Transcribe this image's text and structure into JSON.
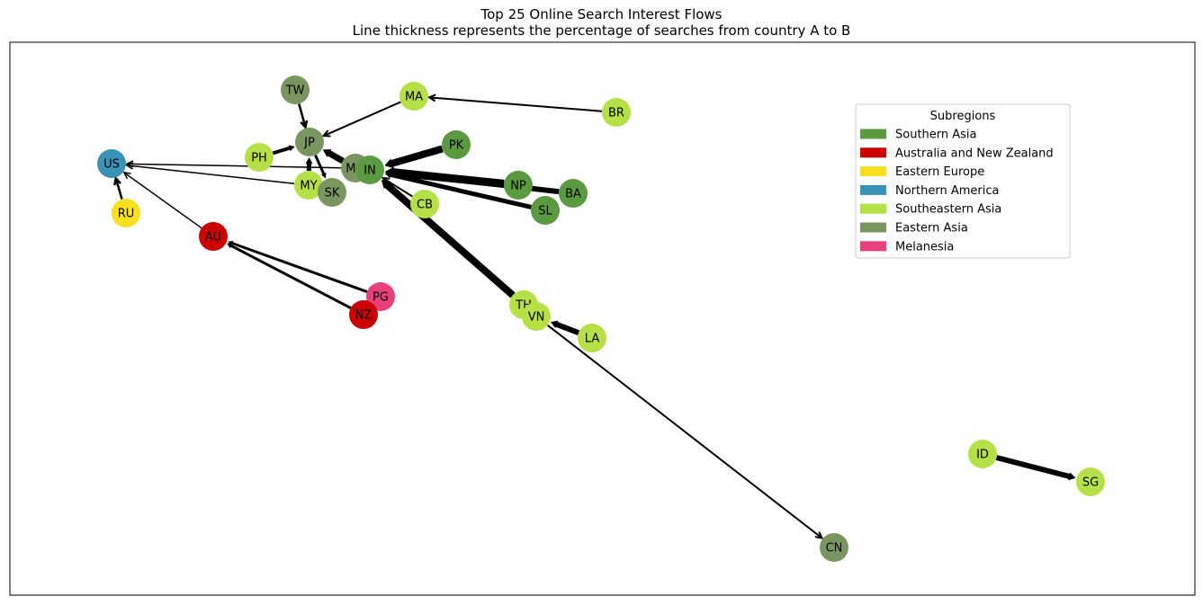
{
  "title": {
    "line1": "Top 25 Online Search Interest Flows",
    "line2": "Line thickness represents the percentage of searches from country A to B"
  },
  "legend": {
    "title": "Subregions",
    "items": [
      {
        "label": "Southern Asia",
        "color": "#5a9a40"
      },
      {
        "label": "Australia and New Zealand",
        "color": "#cc0000"
      },
      {
        "label": "Eastern Europe",
        "color": "#f8e020"
      },
      {
        "label": "Northern America",
        "color": "#3a93b5"
      },
      {
        "label": "Southeastern Asia",
        "color": "#b5e048"
      },
      {
        "label": "Eastern Asia",
        "color": "#7a9660"
      },
      {
        "label": "Melanesia",
        "color": "#e8407a"
      }
    ]
  },
  "nodes": [
    {
      "id": "TW",
      "subregion": "Eastern Asia"
    },
    {
      "id": "MA",
      "subregion": "Southeastern Asia"
    },
    {
      "id": "BR",
      "subregion": "Southeastern Asia"
    },
    {
      "id": "JP",
      "subregion": "Eastern Asia"
    },
    {
      "id": "PK",
      "subregion": "Southern Asia"
    },
    {
      "id": "PH",
      "subregion": "Southeastern Asia"
    },
    {
      "id": "US",
      "subregion": "Northern America"
    },
    {
      "id": "MO",
      "subregion": "Eastern Asia"
    },
    {
      "id": "IN",
      "subregion": "Southern Asia"
    },
    {
      "id": "NP",
      "subregion": "Southern Asia"
    },
    {
      "id": "BA",
      "subregion": "Southern Asia"
    },
    {
      "id": "MY",
      "subregion": "Southeastern Asia"
    },
    {
      "id": "SK",
      "subregion": "Eastern Asia"
    },
    {
      "id": "SL",
      "subregion": "Southern Asia"
    },
    {
      "id": "CB",
      "subregion": "Southeastern Asia"
    },
    {
      "id": "RU",
      "subregion": "Eastern Europe"
    },
    {
      "id": "AU",
      "subregion": "Australia and New Zealand"
    },
    {
      "id": "PG",
      "subregion": "Melanesia"
    },
    {
      "id": "NZ",
      "subregion": "Australia and New Zealand"
    },
    {
      "id": "TH",
      "subregion": "Southeastern Asia"
    },
    {
      "id": "VN",
      "subregion": "Southeastern Asia"
    },
    {
      "id": "LA",
      "subregion": "Southeastern Asia"
    },
    {
      "id": "ID",
      "subregion": "Southeastern Asia"
    },
    {
      "id": "SG",
      "subregion": "Southeastern Asia"
    },
    {
      "id": "CN",
      "subregion": "Eastern Asia"
    }
  ],
  "edges": [
    {
      "from": "TW",
      "to": "JP",
      "weight": 2.5
    },
    {
      "from": "MA",
      "to": "JP",
      "weight": 2
    },
    {
      "from": "BR",
      "to": "MA",
      "weight": 2
    },
    {
      "from": "PH",
      "to": "JP",
      "weight": 4
    },
    {
      "from": "MY",
      "to": "JP",
      "weight": 5
    },
    {
      "from": "JP",
      "to": "SK",
      "weight": 3
    },
    {
      "from": "MO",
      "to": "JP",
      "weight": 7
    },
    {
      "from": "PK",
      "to": "IN",
      "weight": 8
    },
    {
      "from": "NP",
      "to": "IN",
      "weight": 9
    },
    {
      "from": "BA",
      "to": "IN",
      "weight": 6
    },
    {
      "from": "SL",
      "to": "IN",
      "weight": 5
    },
    {
      "from": "CB",
      "to": "IN",
      "weight": 2
    },
    {
      "from": "TH",
      "to": "IN",
      "weight": 8
    },
    {
      "from": "LA",
      "to": "VN",
      "weight": 6
    },
    {
      "from": "VN",
      "to": "CN",
      "weight": 2
    },
    {
      "from": "MO",
      "to": "US",
      "weight": 1.5
    },
    {
      "from": "MY",
      "to": "US",
      "weight": 1.5
    },
    {
      "from": "AU",
      "to": "US",
      "weight": 1.5
    },
    {
      "from": "RU",
      "to": "US",
      "weight": 2.5
    },
    {
      "from": "PG",
      "to": "AU",
      "weight": 3
    },
    {
      "from": "NZ",
      "to": "AU",
      "weight": 3
    },
    {
      "from": "ID",
      "to": "SG",
      "weight": 6
    }
  ]
}
